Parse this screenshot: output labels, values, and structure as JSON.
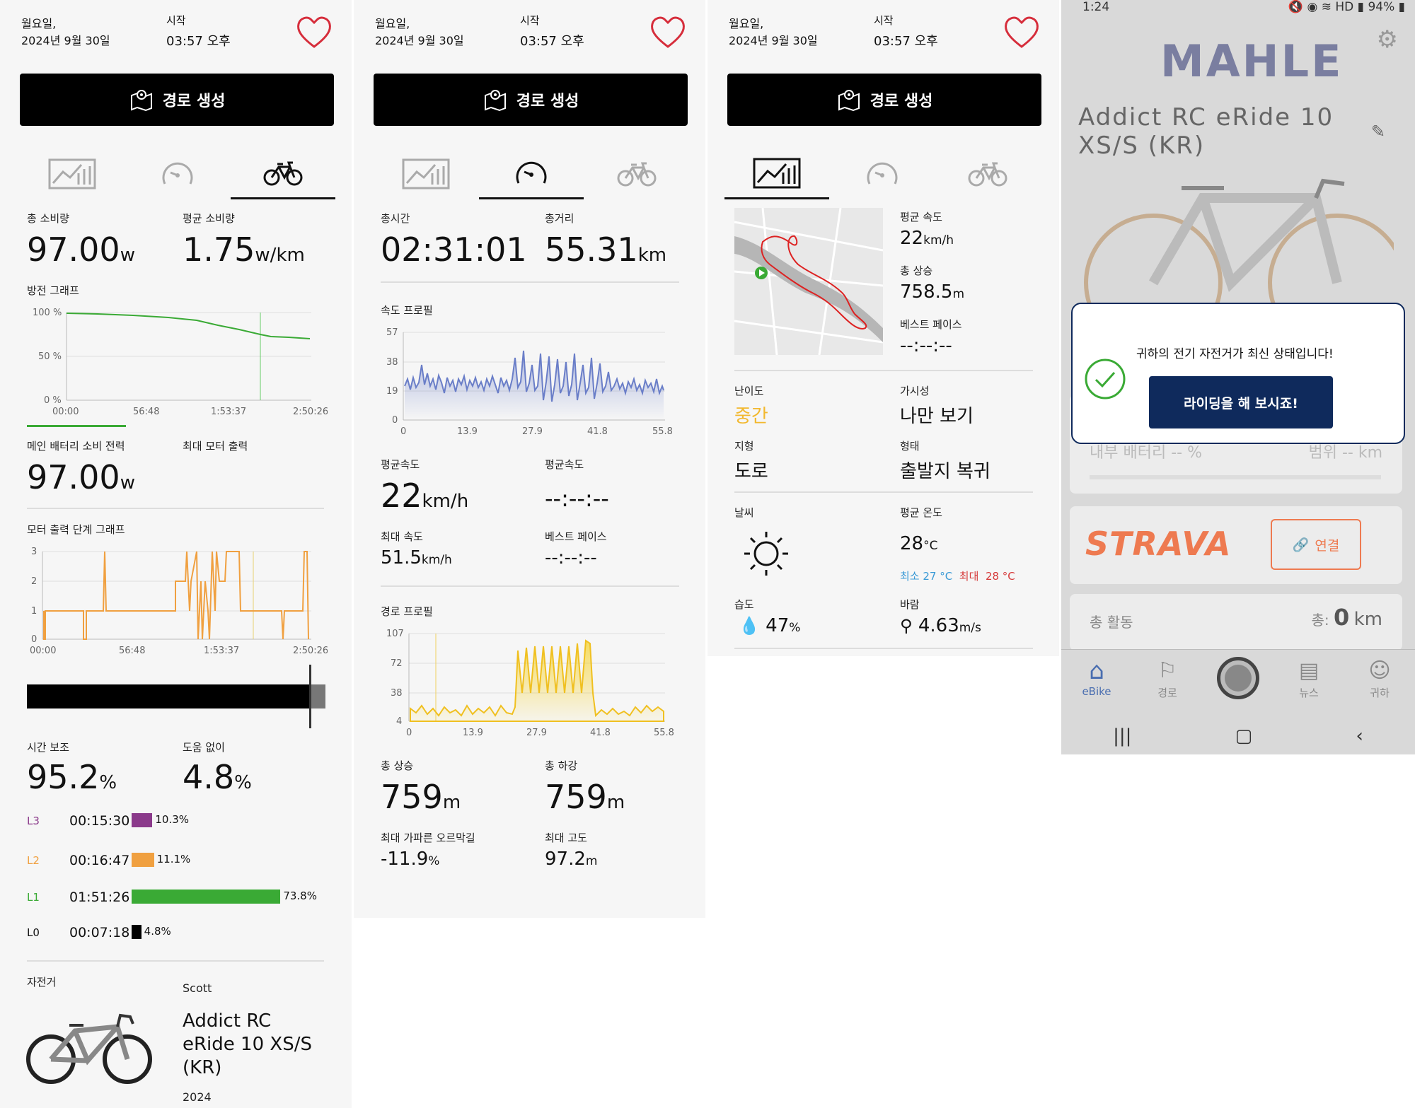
{
  "header": {
    "day": "월요일,",
    "date": "2024년 9월 30일",
    "start_label": "시작",
    "start_time": "03:57 오후"
  },
  "route_button": "경로 생성",
  "panel1": {
    "total_consumption_label": "총 소비량",
    "total_consumption": "97.00",
    "total_consumption_unit": "w",
    "avg_consumption_label": "평균 소비량",
    "avg_consumption": "1.75",
    "avg_consumption_unit": "w/km",
    "discharge_graph_label": "방전 그래프",
    "discharge_y": [
      "100 %",
      "50 %",
      "0 %"
    ],
    "time_ticks": [
      "00:00",
      "56:48",
      "1:53:37",
      "2:50:26"
    ],
    "main_battery_label": "메인 배터리 소비 전력",
    "main_battery": "97.00",
    "main_battery_unit": "w",
    "max_motor_label": "최대 모터 출력",
    "motor_graph_label": "모터 출력 단계 그래프",
    "motor_y": [
      "3",
      "2",
      "1",
      "0"
    ],
    "assist_label": "시간 보조",
    "assist": "95.2",
    "assist_unit": "%",
    "noassist_label": "도움 없이",
    "noassist": "4.8",
    "noassist_unit": "%",
    "levels": [
      {
        "name": "L3",
        "time": "00:15:30",
        "pct": "10.3%",
        "value": 10.3,
        "color": "#8b3a8b"
      },
      {
        "name": "L2",
        "time": "00:16:47",
        "pct": "11.1%",
        "value": 11.1,
        "color": "#f0a040"
      },
      {
        "name": "L1",
        "time": "01:51:26",
        "pct": "73.8%",
        "value": 73.8,
        "color": "#3aaa35"
      },
      {
        "name": "L0",
        "time": "00:07:18",
        "pct": "4.8%",
        "value": 4.8,
        "color": "#000000"
      }
    ],
    "bike_label": "자전거",
    "brand": "Scott",
    "model_l1": "Addict RC",
    "model_l2": "eRide 10 XS/S",
    "model_l3": "(KR)",
    "year": "2024"
  },
  "panel2": {
    "total_time_label": "총시간",
    "total_time": "02:31:01",
    "total_dist_label": "총거리",
    "total_dist": "55.31",
    "total_dist_unit": "km",
    "speed_profile_label": "속도 프로필",
    "speed_y": [
      "57",
      "38",
      "19",
      "0"
    ],
    "dist_ticks": [
      "0",
      "13.9",
      "27.9",
      "41.8",
      "55.8"
    ],
    "avg_speed_label": "평균속도",
    "avg_speed": "22",
    "avg_speed_unit": "km/h",
    "avg_pace_label": "평균속도",
    "avg_pace": "--:--:--",
    "max_speed_label": "최대 속도",
    "max_speed": "51.5",
    "max_speed_unit": "km/h",
    "best_pace_label": "베스트 페이스",
    "best_pace": "--:--:--",
    "route_profile_label": "경로 프로필",
    "elev_y": [
      "107",
      "72",
      "38",
      "4"
    ],
    "total_ascent_label": "총 상승",
    "total_ascent": "759",
    "total_ascent_unit": "m",
    "total_descent_label": "총 하강",
    "total_descent": "759",
    "total_descent_unit": "m",
    "max_grade_label": "최대 가파른 오르막길",
    "max_grade": "-11.9",
    "max_grade_unit": "%",
    "max_alt_label": "최대 고도",
    "max_alt": "97.2",
    "max_alt_unit": "m"
  },
  "panel3": {
    "avg_speed_label": "평균 속도",
    "avg_speed": "22",
    "avg_speed_unit": "km/h",
    "total_ascent_label": "총 상승",
    "total_ascent": "758.5",
    "total_ascent_unit": "m",
    "best_pace_label": "베스트 페이스",
    "best_pace": "--:--:--",
    "difficulty_label": "난이도",
    "difficulty": "중간",
    "visibility_label": "가시성",
    "visibility": "나만 보기",
    "terrain_label": "지형",
    "terrain": "도로",
    "type_label": "형태",
    "type": "출발지 복귀",
    "weather_label": "날씨",
    "avg_temp_label": "평균 온도",
    "avg_temp": "28",
    "avg_temp_unit": "°C",
    "min_label": "최소",
    "min_temp": "27 °C",
    "max_label": "최대",
    "max_temp": "28 °C",
    "humidity_label": "습도",
    "humidity": "47",
    "humidity_unit": "%",
    "wind_label": "바람",
    "wind": "4.63",
    "wind_unit": "m/s"
  },
  "panel4": {
    "status_time": "1:24",
    "status_battery": "94%",
    "status_hd": "HD",
    "brand": "MAHLE",
    "bike_name_l1": "Addict RC eRide 10",
    "bike_name_l2": "XS/S (KR)",
    "dialog_text": "귀하의 전기 자전거가 최신 상태입니다!",
    "dialog_button": "라이딩을 해 보시죠!",
    "internal_battery": "내부 배터리",
    "battery_val": "-- %",
    "range_label": "범위",
    "range_val": "-- km",
    "strava": "STRAVA",
    "connect": "연결",
    "activity_label": "총 활동",
    "activity_total_label": "총:",
    "activity_total": "0",
    "activity_unit": "km",
    "nav": [
      "eBike",
      "경로",
      "뉴스",
      "귀하"
    ]
  }
}
